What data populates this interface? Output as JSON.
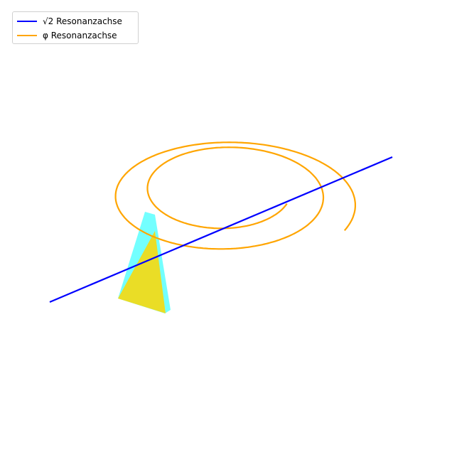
{
  "chart_data": {
    "type": "line",
    "projection": "3d",
    "axes_visible": false,
    "grid": false,
    "legend_position": "top-left",
    "series": [
      {
        "name": "√2 Resonanzachse",
        "color": "#0000ff",
        "kind": "straight axis"
      },
      {
        "name": "φ Resonanzachse",
        "color": "#ffa500",
        "kind": "spiral (two turns)"
      }
    ],
    "surfaces": [
      {
        "color": "#00ffff",
        "opacity": 0.55,
        "kind": "translucent triangle"
      },
      {
        "color": "#ffd700",
        "opacity": 0.85,
        "kind": "triangle"
      }
    ]
  }
}
